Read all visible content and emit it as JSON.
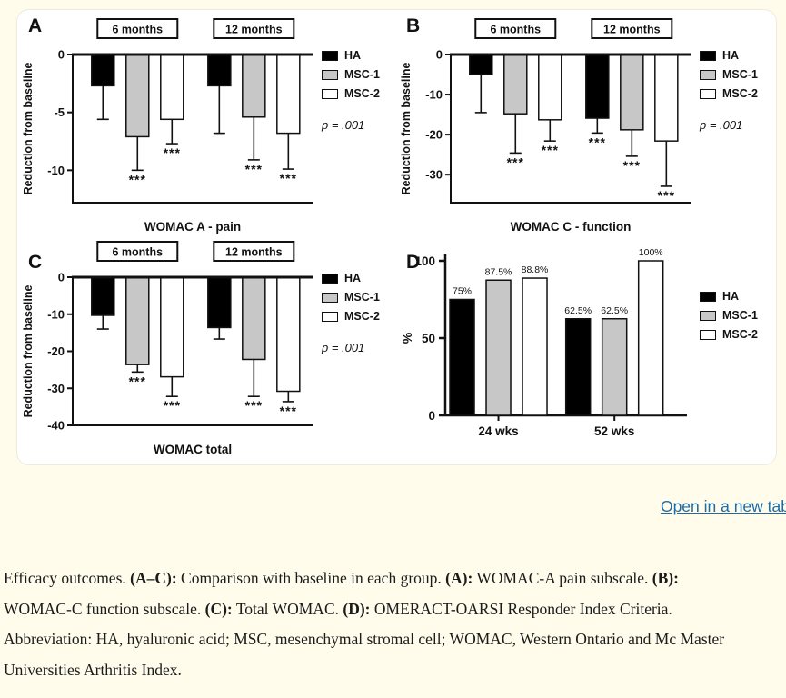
{
  "page": {
    "background_color": "#FFFCEC",
    "card_color": "#FFFFFF"
  },
  "link": {
    "label": "Open in a new tab",
    "color": "#1B6CA8"
  },
  "caption": {
    "segments": [
      {
        "t": "Efficacy outcomes. ",
        "b": 0
      },
      {
        "t": "(A–C):",
        "b": 1
      },
      {
        "t": " Comparison with baseline in each group. ",
        "b": 0
      },
      {
        "t": "(A):",
        "b": 1
      },
      {
        "t": " WOMAC-A pain subscale. ",
        "b": 0
      },
      {
        "t": "(B):",
        "b": 1
      },
      {
        "t": " WOMAC-C function subscale. ",
        "b": 0
      },
      {
        "t": "(C):",
        "b": 1
      },
      {
        "t": " Total WOMAC. ",
        "b": 0
      },
      {
        "t": "(D):",
        "b": 1
      },
      {
        "t": " OMERACT-OARSI Responder Index Criteria. Abbreviation: HA, hyaluronic acid; MSC, mesenchymal stromal cell; WOMAC, Western Ontario and Mc Master Universities Arthritis Index.",
        "b": 0
      }
    ]
  },
  "chart_data": [
    {
      "panel": "A",
      "type": "bar",
      "orientation": "negative",
      "title": "WOMAC A - pain",
      "ylabel": "Reduction from baseline",
      "categories": [
        "6 months",
        "12 months"
      ],
      "series": [
        {
          "name": "HA",
          "color": "#000000",
          "values": [
            -2.7,
            -2.7
          ],
          "errors": [
            2.9,
            4.1
          ],
          "sig": [
            "",
            ""
          ]
        },
        {
          "name": "MSC-1",
          "color": "#C7C7C7",
          "values": [
            -7.1,
            -5.4
          ],
          "errors": [
            2.9,
            3.7
          ],
          "sig": [
            "***",
            "***"
          ]
        },
        {
          "name": "MSC-2",
          "color": "#FFFFFF",
          "values": [
            -5.6,
            -6.8
          ],
          "errors": [
            2.1,
            3.1
          ],
          "sig": [
            "***",
            "***"
          ]
        }
      ],
      "yticks": [
        0,
        -5,
        -10
      ],
      "ylim": [
        0,
        -12.8
      ],
      "grid": false,
      "legend_position": "right",
      "p_label": "p = .001"
    },
    {
      "panel": "B",
      "type": "bar",
      "orientation": "negative",
      "title": "WOMAC C - function",
      "ylabel": "Reduction from baseline",
      "categories": [
        "6 months",
        "12 months"
      ],
      "series": [
        {
          "name": "HA",
          "color": "#000000",
          "values": [
            -5.0,
            -15.9
          ],
          "errors": [
            9.5,
            3.7
          ],
          "sig": [
            "",
            "***"
          ]
        },
        {
          "name": "MSC-1",
          "color": "#C7C7C7",
          "values": [
            -14.8,
            -18.8
          ],
          "errors": [
            9.8,
            6.6
          ],
          "sig": [
            "***",
            "***"
          ]
        },
        {
          "name": "MSC-2",
          "color": "#FFFFFF",
          "values": [
            -16.3,
            -21.6
          ],
          "errors": [
            5.3,
            11.3
          ],
          "sig": [
            "***",
            "***"
          ]
        }
      ],
      "yticks": [
        0,
        -10,
        -20,
        -30
      ],
      "ylim": [
        0,
        -37
      ],
      "grid": false,
      "legend_position": "right",
      "p_label": "p = .001"
    },
    {
      "panel": "C",
      "type": "bar",
      "orientation": "negative",
      "title": "WOMAC total",
      "ylabel": "Reduction from baseline",
      "categories": [
        "6 months",
        "12 months"
      ],
      "series": [
        {
          "name": "HA",
          "color": "#000000",
          "values": [
            -10.3,
            -13.6
          ],
          "errors": [
            3.7,
            3.1
          ],
          "sig": [
            "",
            ""
          ]
        },
        {
          "name": "MSC-1",
          "color": "#C7C7C7",
          "values": [
            -23.6,
            -22.2
          ],
          "errors": [
            2.0,
            10.0
          ],
          "sig": [
            "***",
            "***"
          ]
        },
        {
          "name": "MSC-2",
          "color": "#FFFFFF",
          "values": [
            -26.9,
            -30.8
          ],
          "errors": [
            5.3,
            2.8
          ],
          "sig": [
            "***",
            "***"
          ]
        }
      ],
      "yticks": [
        0,
        -10,
        -20,
        -30,
        -40
      ],
      "ylim": [
        0,
        -40
      ],
      "grid": false,
      "legend_position": "right",
      "p_label": "p = .001"
    },
    {
      "panel": "D",
      "type": "bar",
      "orientation": "positive",
      "title": "",
      "ylabel": "%",
      "categories": [
        "24 wks",
        "52 wks"
      ],
      "series": [
        {
          "name": "HA",
          "color": "#000000",
          "values": [
            75,
            62.5
          ],
          "labels": [
            "75%",
            "62.5%"
          ]
        },
        {
          "name": "MSC-1",
          "color": "#C7C7C7",
          "values": [
            87.5,
            62.5
          ],
          "labels": [
            "87.5%",
            "62.5%"
          ]
        },
        {
          "name": "MSC-2",
          "color": "#FFFFFF",
          "values": [
            88.8,
            100
          ],
          "labels": [
            "88.8%",
            "100%"
          ]
        }
      ],
      "yticks": [
        0,
        50,
        100
      ],
      "ylim": [
        0,
        100
      ],
      "grid": false,
      "legend_position": "right"
    }
  ]
}
